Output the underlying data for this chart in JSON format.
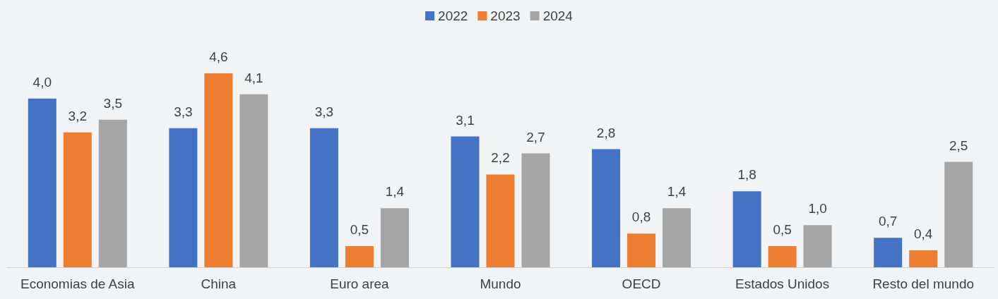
{
  "chart_data": {
    "type": "bar",
    "categories": [
      "Economias de Asia",
      "China",
      "Euro area",
      "Mundo",
      "OECD",
      "Estados Unidos",
      "Resto del mundo"
    ],
    "series": [
      {
        "name": "2022",
        "color": "#4472c4",
        "values": [
          4.0,
          3.3,
          3.3,
          3.1,
          2.8,
          1.8,
          0.7
        ],
        "value_labels": [
          "4,0",
          "3,3",
          "3,3",
          "3,1",
          "2,8",
          "1,8",
          "0,7"
        ]
      },
      {
        "name": "2023",
        "color": "#ed7d31",
        "values": [
          3.2,
          4.6,
          0.5,
          2.2,
          0.8,
          0.5,
          0.4
        ],
        "value_labels": [
          "3,2",
          "4,6",
          "0,5",
          "2,2",
          "0,8",
          "0,5",
          "0,4"
        ]
      },
      {
        "name": "2024",
        "color": "#a5a5a5",
        "values": [
          3.5,
          4.1,
          1.4,
          2.7,
          1.4,
          1.0,
          2.5
        ],
        "value_labels": [
          "3,5",
          "4,1",
          "1,4",
          "2,7",
          "1,4",
          "1,0",
          "2,5"
        ]
      }
    ],
    "legend": "top",
    "tick_labels": "x"
  }
}
